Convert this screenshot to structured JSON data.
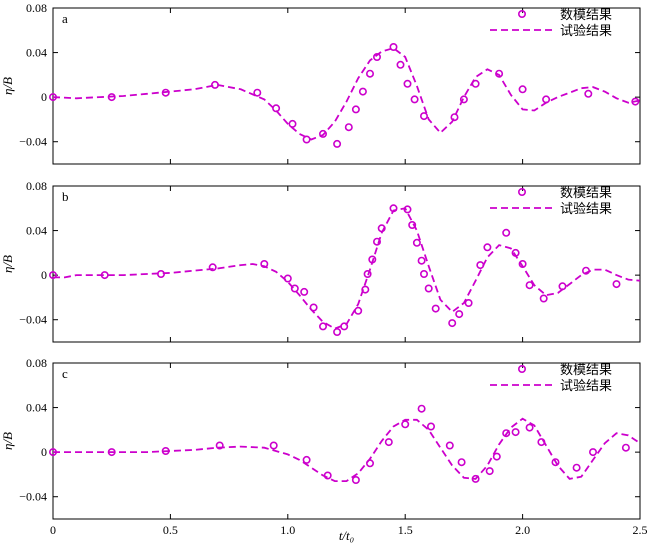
{
  "chart_data": {
    "type": "scatter",
    "xlabel": "t/t₀",
    "ylabel": "η/B",
    "xlim": [
      0,
      2.5
    ],
    "xticks": [
      "0",
      "0.5",
      "1.0",
      "1.5",
      "2.0",
      "2.5"
    ],
    "ylim": [
      -0.06,
      0.08
    ],
    "yticks": [
      "−0.04",
      "0",
      "0.04",
      "0.08"
    ],
    "legend": {
      "position": "top-right",
      "entries": [
        "数模结果",
        "试验结果"
      ]
    },
    "colors": {
      "series": "#cc00cc",
      "axis": "#000000"
    },
    "panels": [
      {
        "label": "a",
        "series": [
          {
            "name": "数模结果",
            "style": "circle-markers",
            "x": [
              0.0,
              0.25,
              0.48,
              0.69,
              0.87,
              0.95,
              1.02,
              1.08,
              1.15,
              1.21,
              1.26,
              1.29,
              1.32,
              1.35,
              1.38,
              1.45,
              1.48,
              1.51,
              1.54,
              1.58,
              1.71,
              1.75,
              1.8,
              1.9,
              2.0,
              2.1,
              2.28,
              2.48
            ],
            "y": [
              0.0,
              0.0,
              0.004,
              0.011,
              0.004,
              -0.01,
              -0.024,
              -0.038,
              -0.033,
              -0.042,
              -0.027,
              -0.011,
              0.005,
              0.021,
              0.036,
              0.045,
              0.029,
              0.012,
              -0.002,
              -0.017,
              -0.018,
              -0.002,
              0.012,
              0.021,
              0.007,
              -0.002,
              0.003,
              -0.004
            ]
          },
          {
            "name": "试验结果",
            "style": "dashed-line",
            "x": [
              0.0,
              0.1,
              0.2,
              0.3,
              0.4,
              0.5,
              0.6,
              0.7,
              0.8,
              0.9,
              0.95,
              1.0,
              1.05,
              1.1,
              1.15,
              1.2,
              1.25,
              1.3,
              1.35,
              1.4,
              1.45,
              1.5,
              1.55,
              1.6,
              1.65,
              1.7,
              1.75,
              1.8,
              1.85,
              1.9,
              1.95,
              2.0,
              2.05,
              2.1,
              2.15,
              2.2,
              2.25,
              2.3,
              2.35,
              2.4,
              2.45,
              2.5
            ],
            "y": [
              0.0,
              -0.001,
              0.0,
              0.001,
              0.003,
              0.005,
              0.007,
              0.011,
              0.007,
              -0.002,
              -0.012,
              -0.024,
              -0.033,
              -0.038,
              -0.034,
              -0.022,
              -0.004,
              0.017,
              0.033,
              0.041,
              0.044,
              0.036,
              0.01,
              -0.02,
              -0.032,
              -0.022,
              0.0,
              0.018,
              0.025,
              0.02,
              0.002,
              -0.011,
              -0.012,
              -0.005,
              0.0,
              0.004,
              0.008,
              0.009,
              0.005,
              -0.001,
              -0.005,
              -0.003
            ]
          }
        ]
      },
      {
        "label": "b",
        "series": [
          {
            "name": "数模结果",
            "style": "circle-markers",
            "x": [
              0.0,
              0.22,
              0.46,
              0.68,
              0.9,
              1.0,
              1.03,
              1.07,
              1.11,
              1.15,
              1.21,
              1.24,
              1.3,
              1.33,
              1.34,
              1.36,
              1.38,
              1.4,
              1.45,
              1.51,
              1.53,
              1.55,
              1.57,
              1.58,
              1.6,
              1.63,
              1.7,
              1.73,
              1.77,
              1.82,
              1.85,
              1.93,
              1.97,
              2.0,
              2.03,
              2.09,
              2.17,
              2.27,
              2.4
            ],
            "y": [
              0.0,
              0.0,
              0.001,
              0.007,
              0.01,
              -0.003,
              -0.012,
              -0.015,
              -0.029,
              -0.046,
              -0.051,
              -0.046,
              -0.032,
              -0.013,
              0.001,
              0.014,
              0.03,
              0.042,
              0.06,
              0.059,
              0.045,
              0.029,
              0.013,
              0.001,
              -0.012,
              -0.03,
              -0.043,
              -0.035,
              -0.025,
              0.009,
              0.025,
              0.038,
              0.02,
              0.01,
              -0.009,
              -0.021,
              -0.01,
              0.004,
              -0.008
            ]
          },
          {
            "name": "试验结果",
            "style": "dashed-line",
            "x": [
              0.0,
              0.05,
              0.1,
              0.2,
              0.3,
              0.4,
              0.5,
              0.6,
              0.7,
              0.8,
              0.85,
              0.9,
              0.95,
              1.0,
              1.05,
              1.1,
              1.15,
              1.2,
              1.25,
              1.3,
              1.35,
              1.4,
              1.45,
              1.5,
              1.55,
              1.6,
              1.65,
              1.7,
              1.75,
              1.8,
              1.85,
              1.9,
              1.95,
              2.0,
              2.05,
              2.1,
              2.15,
              2.2,
              2.25,
              2.3,
              2.35,
              2.4,
              2.45,
              2.5
            ],
            "y": [
              -0.002,
              -0.002,
              0.0,
              0.0,
              0.0,
              0.001,
              0.002,
              0.004,
              0.006,
              0.009,
              0.01,
              0.008,
              0.003,
              -0.006,
              -0.018,
              -0.031,
              -0.042,
              -0.048,
              -0.044,
              -0.026,
              0.005,
              0.038,
              0.058,
              0.06,
              0.04,
              0.008,
              -0.022,
              -0.033,
              -0.025,
              -0.005,
              0.016,
              0.027,
              0.024,
              0.008,
              -0.009,
              -0.018,
              -0.016,
              -0.008,
              0.0,
              0.005,
              0.005,
              0.0,
              -0.004,
              -0.005
            ]
          }
        ]
      },
      {
        "label": "c",
        "series": [
          {
            "name": "数模结果",
            "style": "circle-markers",
            "x": [
              0.0,
              0.25,
              0.48,
              0.71,
              0.94,
              1.08,
              1.17,
              1.29,
              1.35,
              1.43,
              1.5,
              1.57,
              1.61,
              1.69,
              1.74,
              1.8,
              1.86,
              1.89,
              1.93,
              1.97,
              2.03,
              2.08,
              2.14,
              2.23,
              2.3,
              2.44
            ],
            "y": [
              0.0,
              0.0,
              0.001,
              0.006,
              0.006,
              -0.007,
              -0.021,
              -0.025,
              -0.01,
              0.009,
              0.025,
              0.039,
              0.023,
              0.006,
              -0.009,
              -0.024,
              -0.017,
              -0.004,
              0.017,
              0.018,
              0.022,
              0.009,
              -0.009,
              -0.014,
              0.0,
              0.004
            ]
          },
          {
            "name": "试验结果",
            "style": "dashed-line",
            "x": [
              0.0,
              0.1,
              0.2,
              0.3,
              0.4,
              0.5,
              0.6,
              0.7,
              0.8,
              0.9,
              1.0,
              1.05,
              1.1,
              1.15,
              1.2,
              1.25,
              1.3,
              1.35,
              1.4,
              1.45,
              1.5,
              1.55,
              1.6,
              1.65,
              1.7,
              1.75,
              1.8,
              1.85,
              1.9,
              1.95,
              2.0,
              2.05,
              2.1,
              2.15,
              2.2,
              2.25,
              2.3,
              2.35,
              2.4,
              2.45,
              2.5
            ],
            "y": [
              0.0,
              0.0,
              0.0,
              0.0,
              0.0,
              0.001,
              0.002,
              0.004,
              0.005,
              0.004,
              -0.002,
              -0.007,
              -0.014,
              -0.021,
              -0.026,
              -0.026,
              -0.019,
              -0.006,
              0.01,
              0.023,
              0.029,
              0.029,
              0.02,
              0.004,
              -0.012,
              -0.023,
              -0.024,
              -0.012,
              0.007,
              0.022,
              0.03,
              0.024,
              0.006,
              -0.012,
              -0.024,
              -0.022,
              -0.007,
              0.008,
              0.017,
              0.015,
              0.008
            ]
          }
        ]
      }
    ]
  }
}
